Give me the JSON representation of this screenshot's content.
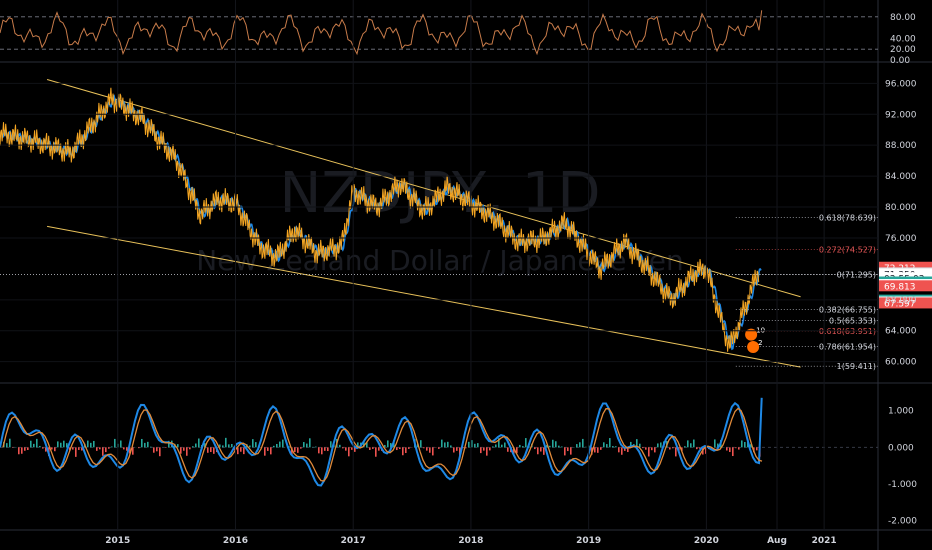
{
  "watermark": {
    "symbol": "NZDJPY, 1D",
    "description": "New Zealand Dollar / Japanese Yen"
  },
  "colors": {
    "background": "#000000",
    "price_line": "#f5a623",
    "trend_line": "#e8c15a",
    "ma_blue": "#1e88e5",
    "ma_orange": "#e08a3a",
    "rsi_line": "#c77b4a",
    "hist_green": "#26a69a",
    "hist_red": "#ef5350",
    "fib_label": "#d1d4dc",
    "fib_red": "#e05555"
  },
  "chart_data": [
    {
      "type": "line",
      "name": "rsi-panel",
      "y_ticks": [
        "80.00",
        "40.00",
        "20.00",
        "0.00"
      ],
      "ylim": [
        0,
        100
      ],
      "levels": [
        80,
        20
      ]
    },
    {
      "type": "line",
      "name": "price-panel",
      "y_ticks": [
        "96.000",
        "92.000",
        "88.000",
        "84.000",
        "80.000",
        "76.000",
        "68.000",
        "64.000",
        "60.000"
      ],
      "ylim": [
        57.5,
        98.5
      ],
      "x_ticks": [
        "2015",
        "2016",
        "2017",
        "2018",
        "2019",
        "2020",
        "Aug",
        "2021"
      ],
      "x": [
        2014.0,
        2014.3,
        2014.6,
        2014.95,
        2015.2,
        2015.5,
        2015.7,
        2015.85,
        2016.0,
        2016.2,
        2016.35,
        2016.5,
        2016.7,
        2016.9,
        2017.0,
        2017.2,
        2017.4,
        2017.6,
        2017.8,
        2018.0,
        2018.2,
        2018.4,
        2018.6,
        2018.8,
        2019.0,
        2019.1,
        2019.3,
        2019.5,
        2019.7,
        2019.9,
        2020.0,
        2020.15,
        2020.2,
        2020.28,
        2020.35,
        2020.45
      ],
      "y": [
        89.5,
        88.5,
        87.0,
        94.0,
        91.5,
        86.0,
        79.0,
        81.0,
        80.5,
        75.0,
        73.5,
        77.0,
        74.0,
        75.0,
        82.0,
        80.0,
        83.0,
        79.5,
        82.5,
        80.5,
        78.5,
        75.5,
        75.8,
        78.0,
        74.0,
        72.0,
        75.5,
        72.0,
        68.0,
        71.5,
        72.0,
        64.0,
        62.0,
        65.0,
        68.0,
        72.2
      ],
      "price_tags": [
        {
          "text": "72.212",
          "color": "#ef5350",
          "value": 72.212
        },
        {
          "text": "71.484",
          "color": "#d1d4dc",
          "value": 71.484
        },
        {
          "text": "71.350",
          "color": "#ffffff",
          "value": 71.35
        },
        {
          "text": "03:55:03",
          "color": "#ffffff",
          "value": 70.85
        },
        {
          "text": "70.303",
          "color": "#26a69a",
          "value": 70.303
        },
        {
          "text": "69.976",
          "color": "#ffffff",
          "value": 69.976
        },
        {
          "text": "69.813",
          "color": "#ef5350",
          "value": 69.813
        },
        {
          "text": "67.958",
          "color": "#26a69a",
          "value": 67.958
        },
        {
          "text": "67.717",
          "color": "#ffffff",
          "value": 67.717
        },
        {
          "text": "67.597",
          "color": "#ef5350",
          "value": 67.597
        }
      ],
      "fib_levels": [
        {
          "label": "0.618(78.639)",
          "value": 78.639,
          "color": "#d1d4dc"
        },
        {
          "label": "0.272(74.527)",
          "value": 74.527,
          "color": "#e05555"
        },
        {
          "label": "0(71.295)",
          "value": 71.295,
          "color": "#d1d4dc"
        },
        {
          "label": "0.382(66.755)",
          "value": 66.755,
          "color": "#d1d4dc"
        },
        {
          "label": "0.5(65.353)",
          "value": 65.353,
          "color": "#d1d4dc"
        },
        {
          "label": "0.618(63.951)",
          "value": 63.951,
          "color": "#e05555"
        },
        {
          "label": "0.786(61.954)",
          "value": 61.954,
          "color": "#d1d4dc"
        },
        {
          "label": "1(59.411)",
          "value": 59.411,
          "color": "#d1d4dc"
        }
      ]
    },
    {
      "type": "line",
      "name": "macd-panel",
      "y_ticks": [
        "1.000",
        "0.000",
        "-1.000",
        "-2.000"
      ],
      "ylim": [
        -2.2,
        1.7
      ]
    }
  ],
  "markers": [
    {
      "label": "10"
    },
    {
      "label": "2"
    }
  ]
}
